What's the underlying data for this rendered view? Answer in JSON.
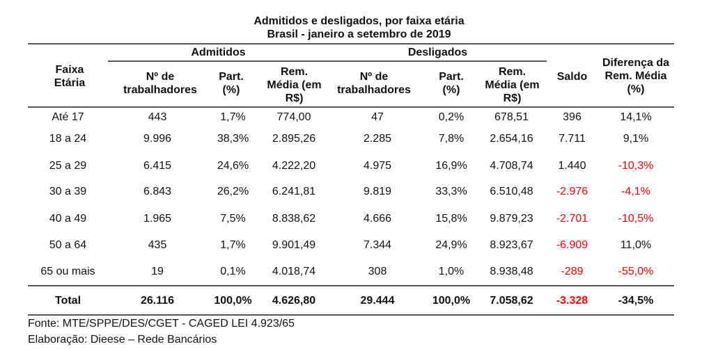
{
  "title": "Admitidos e desligados, por faixa etária",
  "subtitle": "Brasil - janeiro a setembro de 2019",
  "header": {
    "faixa": "Faixa Etária",
    "admitidos": "Admitidos",
    "desligados": "Desligados",
    "n_trab": "Nº de trabalhadores",
    "part": "Part. (%)",
    "rem": "Rem. Média (em R$)",
    "saldo": "Saldo",
    "diferenca": "Diferença da Rem. Média (%)"
  },
  "negative_color": "#ff0000",
  "rows": [
    {
      "faixa": "Até 17",
      "cells": [
        "443",
        "1,7%",
        "774,00",
        "47",
        "0,2%",
        "678,51",
        "396",
        "14,1%"
      ],
      "red": []
    },
    {
      "faixa": "18 a 24",
      "cells": [
        "9.996",
        "38,3%",
        "2.895,26",
        "2.285",
        "7,8%",
        "2.654,16",
        "7.711",
        "9,1%"
      ],
      "red": []
    },
    {
      "faixa": "25 a 29",
      "cells": [
        "6.415",
        "24,6%",
        "4.222,20",
        "4.975",
        "16,9%",
        "4.708,74",
        "1.440",
        "-10,3%"
      ],
      "red": [
        7
      ]
    },
    {
      "faixa": "30 a 39",
      "cells": [
        "6.843",
        "26,2%",
        "6.241,81",
        "9.819",
        "33,3%",
        "6.510,48",
        "-2.976",
        "-4,1%"
      ],
      "red": [
        6,
        7
      ]
    },
    {
      "faixa": "40 a 49",
      "cells": [
        "1.965",
        "7,5%",
        "8.838,62",
        "4.666",
        "15,8%",
        "9.879,23",
        "-2.701",
        "-10,5%"
      ],
      "red": [
        6,
        7
      ]
    },
    {
      "faixa": "50 a 64",
      "cells": [
        "435",
        "1,7%",
        "9.901,49",
        "7.344",
        "24,9%",
        "8.923,67",
        "-6.909",
        "11,0%"
      ],
      "red": [
        6
      ]
    },
    {
      "faixa": "65 ou mais",
      "cells": [
        "19",
        "0,1%",
        "4.018,74",
        "308",
        "1,0%",
        "8.938,48",
        "-289",
        "-55,0%"
      ],
      "red": [
        6,
        7
      ]
    }
  ],
  "total": {
    "faixa": "Total",
    "cells": [
      "26.116",
      "100,0%",
      "4.626,80",
      "29.444",
      "100,0%",
      "7.058,62",
      "-3.328",
      "-34,5%"
    ],
    "red": [
      6
    ]
  },
  "footer": {
    "fonte": "Fonte: MTE/SPPE/DES/CGET - CAGED LEI 4.923/65",
    "elaboracao": "Elaboração: Dieese – Rede Bancários"
  }
}
